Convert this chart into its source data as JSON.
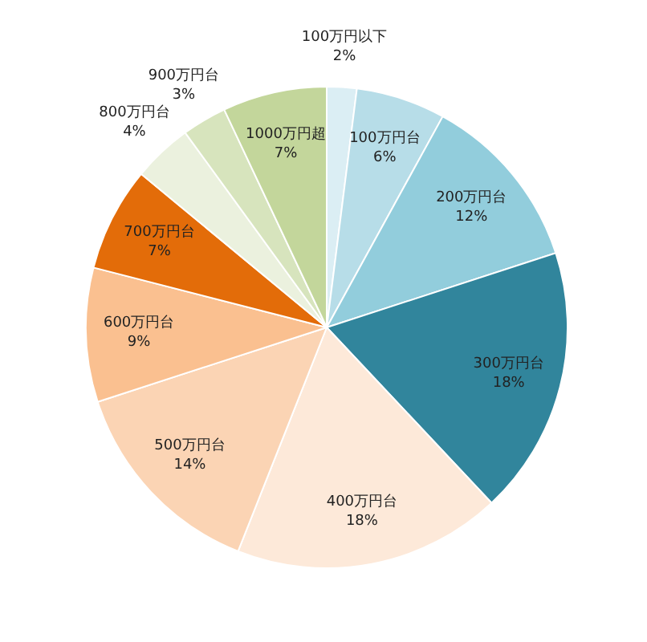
{
  "chart_data": {
    "type": "pie",
    "categories": [
      "100万円以下",
      "100万円台",
      "200万円台",
      "300万円台",
      "400万円台",
      "500万円台",
      "600万円台",
      "700万円台",
      "800万円台",
      "900万円台",
      "1000万円超"
    ],
    "values": [
      2,
      6,
      12,
      18,
      18,
      14,
      9,
      7,
      4,
      3,
      7
    ],
    "colors": [
      "#dbeef4",
      "#b7dde8",
      "#92cddc",
      "#31859c",
      "#fde9d9",
      "#fbd4b4",
      "#fac090",
      "#e36c09",
      "#ebf1de",
      "#d7e4bd",
      "#c3d69b"
    ],
    "value_labels": [
      "2%",
      "6%",
      "12%",
      "18%",
      "18%",
      "14%",
      "9%",
      "7%",
      "4%",
      "3%",
      "7%"
    ],
    "legend": false
  }
}
